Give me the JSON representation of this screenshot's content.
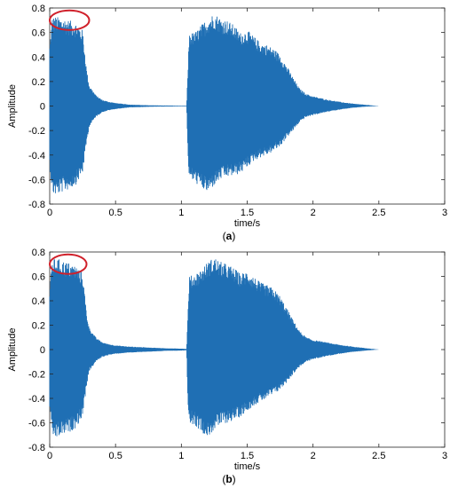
{
  "chart_data": [
    {
      "type": "line",
      "panel_label": "a",
      "xlabel": "time/s",
      "ylabel": "Amplitude",
      "xlim": [
        0,
        3
      ],
      "ylim": [
        -0.8,
        0.8
      ],
      "x_ticks": [
        "0",
        "0.5",
        "1",
        "1.5",
        "2",
        "2.5",
        "3"
      ],
      "y_ticks": [
        "0.8",
        "0.6",
        "0.4",
        "0.2",
        "0",
        "-0.2",
        "-0.4",
        "-0.6",
        "-0.8"
      ],
      "grid": false,
      "series_color": "#1f6fb4",
      "annotation": {
        "shape": "ellipse",
        "color": "#d0202a",
        "center": [
          0.15,
          0.7
        ],
        "radius": [
          0.15,
          0.08
        ]
      },
      "envelope": {
        "x": [
          0,
          0.02,
          0.05,
          0.1,
          0.15,
          0.2,
          0.25,
          0.28,
          0.3,
          0.35,
          0.4,
          0.45,
          0.5,
          0.6,
          0.7,
          0.8,
          0.9,
          1.0,
          1.04,
          1.05,
          1.06,
          1.1,
          1.15,
          1.2,
          1.25,
          1.3,
          1.35,
          1.4,
          1.45,
          1.5,
          1.55,
          1.6,
          1.65,
          1.7,
          1.75,
          1.8,
          1.85,
          1.9,
          1.95,
          2.0,
          2.1,
          2.2,
          2.3,
          2.4,
          2.5
        ],
        "upper": [
          0.5,
          0.73,
          0.73,
          0.72,
          0.7,
          0.68,
          0.62,
          0.3,
          0.17,
          0.09,
          0.05,
          0.035,
          0.025,
          0.012,
          0.008,
          0.005,
          0.004,
          0.003,
          0.003,
          0.3,
          0.6,
          0.6,
          0.66,
          0.72,
          0.76,
          0.72,
          0.7,
          0.66,
          0.6,
          0.62,
          0.57,
          0.52,
          0.5,
          0.47,
          0.42,
          0.33,
          0.23,
          0.14,
          0.1,
          0.08,
          0.055,
          0.035,
          0.02,
          0.01,
          0.0
        ],
        "lower": [
          -0.5,
          -0.72,
          -0.73,
          -0.7,
          -0.68,
          -0.64,
          -0.55,
          -0.3,
          -0.17,
          -0.09,
          -0.05,
          -0.035,
          -0.025,
          -0.012,
          -0.008,
          -0.005,
          -0.004,
          -0.003,
          -0.003,
          -0.4,
          -0.6,
          -0.62,
          -0.67,
          -0.71,
          -0.65,
          -0.6,
          -0.58,
          -0.57,
          -0.55,
          -0.5,
          -0.45,
          -0.42,
          -0.4,
          -0.37,
          -0.33,
          -0.26,
          -0.2,
          -0.13,
          -0.09,
          -0.075,
          -0.05,
          -0.03,
          -0.015,
          -0.005,
          0.0
        ]
      }
    },
    {
      "type": "line",
      "panel_label": "b",
      "xlabel": "time/s",
      "ylabel": "Amplitude",
      "xlim": [
        0,
        3
      ],
      "ylim": [
        -0.8,
        0.8
      ],
      "x_ticks": [
        "0",
        "0.5",
        "1",
        "1.5",
        "2",
        "2.5",
        "3"
      ],
      "y_ticks": [
        "0.8",
        "0.6",
        "0.4",
        "0.2",
        "0",
        "-0.2",
        "-0.4",
        "-0.6",
        "-0.8"
      ],
      "grid": false,
      "series_color": "#1f6fb4",
      "annotation": {
        "shape": "ellipse",
        "color": "#d0202a",
        "center": [
          0.14,
          0.7
        ],
        "radius": [
          0.14,
          0.08
        ]
      },
      "envelope": {
        "x": [
          0,
          0.02,
          0.05,
          0.1,
          0.15,
          0.2,
          0.25,
          0.28,
          0.3,
          0.35,
          0.4,
          0.45,
          0.5,
          0.6,
          0.7,
          0.8,
          0.9,
          1.0,
          1.04,
          1.05,
          1.06,
          1.1,
          1.15,
          1.2,
          1.25,
          1.3,
          1.35,
          1.4,
          1.45,
          1.5,
          1.55,
          1.6,
          1.65,
          1.7,
          1.75,
          1.8,
          1.85,
          1.9,
          1.95,
          2.0,
          2.1,
          2.2,
          2.3,
          2.4,
          2.5
        ],
        "upper": [
          0.5,
          0.74,
          0.75,
          0.73,
          0.71,
          0.69,
          0.63,
          0.3,
          0.18,
          0.1,
          0.06,
          0.045,
          0.035,
          0.025,
          0.02,
          0.015,
          0.01,
          0.008,
          0.006,
          0.3,
          0.6,
          0.62,
          0.66,
          0.72,
          0.76,
          0.72,
          0.7,
          0.67,
          0.62,
          0.65,
          0.6,
          0.55,
          0.53,
          0.5,
          0.44,
          0.34,
          0.24,
          0.15,
          0.1,
          0.08,
          0.06,
          0.04,
          0.025,
          0.012,
          0.0
        ],
        "lower": [
          -0.5,
          -0.72,
          -0.73,
          -0.7,
          -0.68,
          -0.64,
          -0.55,
          -0.3,
          -0.18,
          -0.1,
          -0.06,
          -0.045,
          -0.035,
          -0.025,
          -0.02,
          -0.015,
          -0.01,
          -0.008,
          -0.006,
          -0.45,
          -0.6,
          -0.62,
          -0.67,
          -0.72,
          -0.66,
          -0.62,
          -0.6,
          -0.58,
          -0.55,
          -0.5,
          -0.46,
          -0.43,
          -0.4,
          -0.37,
          -0.33,
          -0.27,
          -0.2,
          -0.14,
          -0.1,
          -0.08,
          -0.055,
          -0.035,
          -0.02,
          -0.008,
          0.0
        ]
      }
    }
  ]
}
